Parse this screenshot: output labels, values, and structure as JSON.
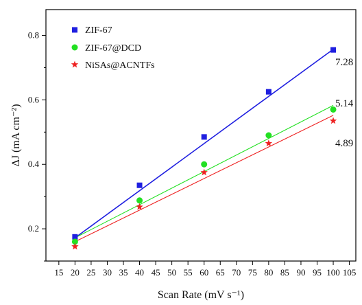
{
  "chart_data": {
    "type": "scatter",
    "xlabel": "Scan Rate (mV s⁻¹)",
    "ylabel": "ΔJ (mA cm⁻²)",
    "xlim": [
      11,
      107
    ],
    "ylim": [
      0.1,
      0.88
    ],
    "xticks": [
      "15",
      "20",
      "25",
      "30",
      "35",
      "40",
      "45",
      "50",
      "55",
      "60",
      "65",
      "70",
      "75",
      "80",
      "85",
      "90",
      "95",
      "100",
      "105"
    ],
    "yticks": [
      "0.2",
      "0.4",
      "0.6",
      "0.8"
    ],
    "legend_position": "top-left",
    "series": [
      {
        "name": "ZIF-67",
        "color": "#1f1fe0",
        "marker": "square",
        "x": [
          20,
          40,
          60,
          80,
          100
        ],
        "y": [
          0.175,
          0.335,
          0.485,
          0.625,
          0.755
        ],
        "fit": [
          [
            20,
            0.172
          ],
          [
            100,
            0.757
          ]
        ]
      },
      {
        "name": "ZIF-67@DCD",
        "color": "#22e022",
        "marker": "circle",
        "x": [
          20,
          40,
          60,
          80,
          100
        ],
        "y": [
          0.16,
          0.288,
          0.4,
          0.49,
          0.57
        ],
        "fit": [
          [
            20,
            0.172
          ],
          [
            100,
            0.583
          ]
        ]
      },
      {
        "name": "NiSAs@ACNTFs",
        "color": "#ee2222",
        "marker": "star",
        "x": [
          20,
          40,
          60,
          80,
          100
        ],
        "y": [
          0.145,
          0.268,
          0.375,
          0.465,
          0.535
        ],
        "fit": [
          [
            20,
            0.16
          ],
          [
            100,
            0.552
          ]
        ]
      }
    ],
    "annotations": [
      "7.28",
      "5.14",
      "4.89"
    ]
  }
}
